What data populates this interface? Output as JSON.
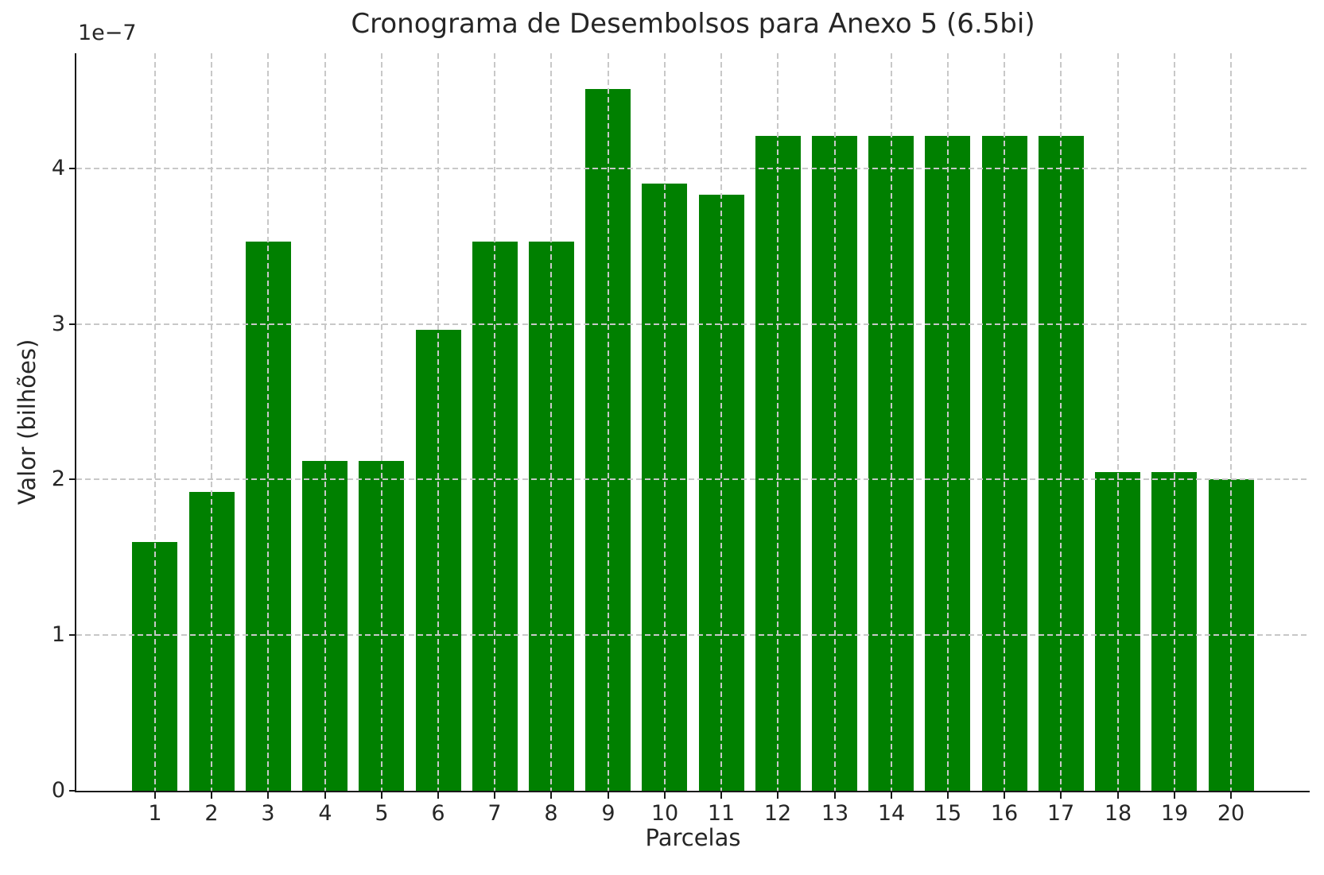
{
  "chart_data": {
    "type": "bar",
    "title": "Cronograma de Desembolsos para Anexo 5 (6.5bi)",
    "xlabel": "Parcelas",
    "ylabel": "Valor (bilhões)",
    "y_offset_label": "1e−7",
    "categories": [
      "1",
      "2",
      "3",
      "4",
      "5",
      "6",
      "7",
      "8",
      "9",
      "10",
      "11",
      "12",
      "13",
      "14",
      "15",
      "16",
      "17",
      "18",
      "19",
      "20"
    ],
    "values": [
      1.6,
      1.92,
      3.53,
      2.12,
      2.12,
      2.96,
      3.53,
      3.53,
      4.51,
      3.9,
      3.83,
      4.21,
      4.21,
      4.21,
      4.21,
      4.21,
      4.21,
      2.05,
      2.05,
      2.0
    ],
    "values_unit": "1e-7",
    "bar_color": "#008000",
    "yticks": [
      0,
      1,
      2,
      3,
      4
    ],
    "ylim": [
      0,
      4.74
    ],
    "grid": true,
    "grid_style": "dashed",
    "legend": "none"
  }
}
